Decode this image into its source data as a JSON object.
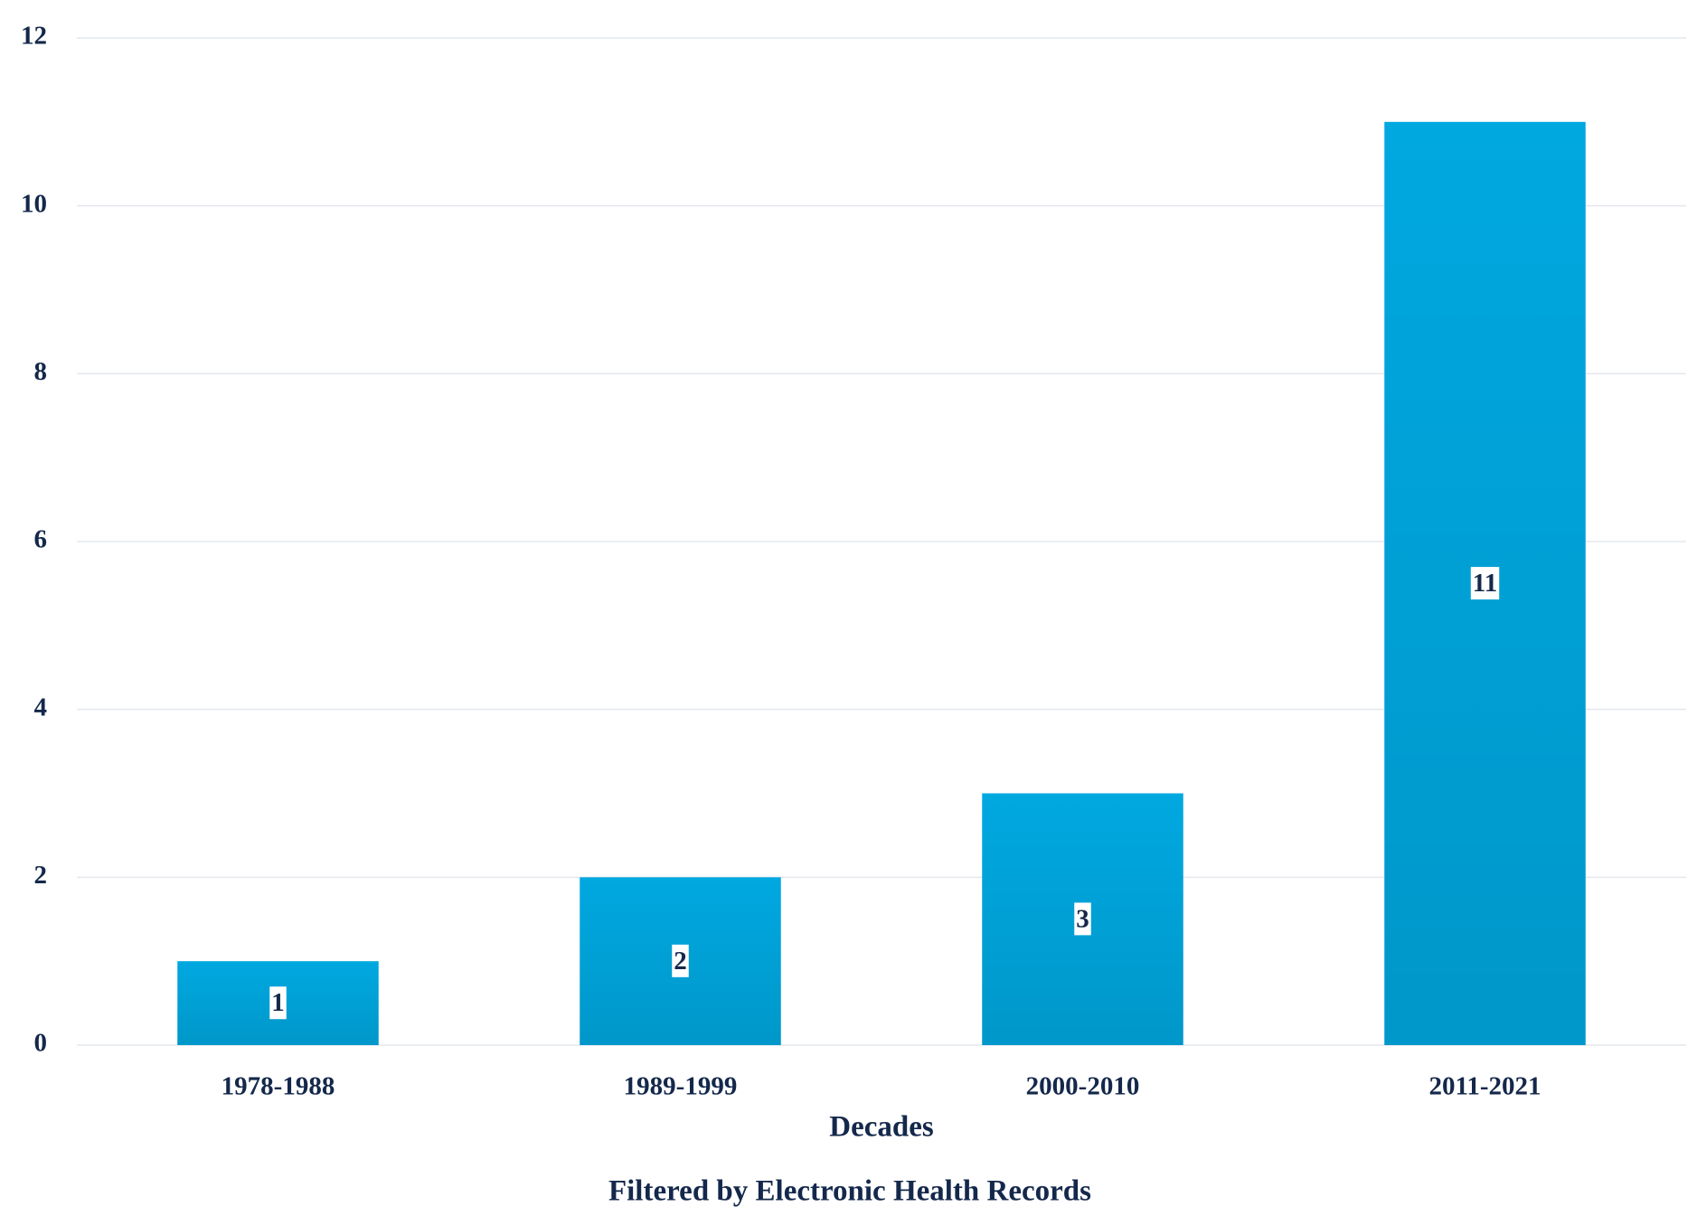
{
  "chart_data": {
    "type": "bar",
    "x_label": "Decades",
    "subtitle": "Filtered by Electronic Health Records",
    "categories": [
      "1978-1988",
      "1989-1999",
      "2000-2010",
      "2011-2021"
    ],
    "values": [
      1,
      2,
      3,
      11
    ],
    "color": "#00a8e0",
    "ylim": [
      0,
      12
    ],
    "yticks": [
      0,
      2,
      4,
      6,
      8,
      10,
      12
    ],
    "grid": true
  }
}
